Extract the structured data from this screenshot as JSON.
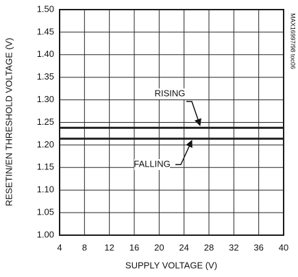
{
  "chart_data": {
    "type": "line",
    "x_label": "SUPPLY VOLTAGE (V)",
    "y_label": "RESETIN/EN THRESHOLD VOLTAGE (V)",
    "side_note": "MAX16997/98 toc06",
    "x": [
      4,
      40
    ],
    "series": [
      {
        "name": "RISING",
        "color": "#222222",
        "values": [
          1.238,
          1.238
        ]
      },
      {
        "name": "FALLING",
        "color": "#222222",
        "values": [
          1.214,
          1.214
        ]
      }
    ],
    "xlim": [
      4,
      40
    ],
    "xticks": [
      4,
      8,
      12,
      16,
      20,
      24,
      28,
      32,
      36,
      40
    ],
    "ylim": [
      1,
      1.5
    ],
    "yticks": [
      {
        "value": 1,
        "label": "1.00"
      },
      1.05,
      {
        "value": 1.1,
        "label": "1.10"
      },
      1.15,
      {
        "value": 1.2,
        "label": "1.20"
      },
      1.25,
      {
        "value": 1.3,
        "label": "1.30"
      },
      1.35,
      {
        "value": 1.4,
        "label": "1.40"
      },
      1.45,
      {
        "value": 1.5,
        "label": "1.50"
      }
    ],
    "grid": true
  }
}
